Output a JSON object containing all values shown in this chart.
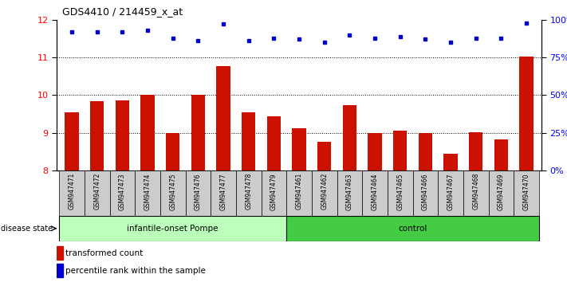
{
  "title": "GDS4410 / 214459_x_at",
  "samples": [
    "GSM947471",
    "GSM947472",
    "GSM947473",
    "GSM947474",
    "GSM947475",
    "GSM947476",
    "GSM947477",
    "GSM947478",
    "GSM947479",
    "GSM947461",
    "GSM947462",
    "GSM947463",
    "GSM947464",
    "GSM947465",
    "GSM947466",
    "GSM947467",
    "GSM947468",
    "GSM947469",
    "GSM947470"
  ],
  "red_values": [
    9.55,
    9.85,
    9.87,
    10.02,
    9.0,
    10.0,
    10.78,
    9.55,
    9.44,
    9.12,
    8.77,
    9.73,
    9.0,
    9.05,
    9.0,
    8.45,
    9.02,
    8.83,
    11.02
  ],
  "blue_values": [
    92,
    92,
    92,
    93,
    88,
    86,
    97,
    86,
    88,
    87,
    85,
    90,
    88,
    89,
    87,
    85,
    88,
    88,
    98
  ],
  "ylim_left": [
    8,
    12
  ],
  "ylim_right": [
    0,
    100
  ],
  "yticks_left": [
    8,
    9,
    10,
    11,
    12
  ],
  "yticks_right": [
    0,
    25,
    50,
    75,
    100
  ],
  "bar_color": "#cc1100",
  "dot_color": "#0000cc",
  "bar_bottom": 8,
  "group1_count": 9,
  "group1_label": "infantile-onset Pompe",
  "group2_label": "control",
  "group1_color": "#bbffbb",
  "group2_color": "#44cc44",
  "disease_state_label": "disease state",
  "legend_bar_label": "transformed count",
  "legend_dot_label": "percentile rank within the sample",
  "label_bg": "#cccccc"
}
